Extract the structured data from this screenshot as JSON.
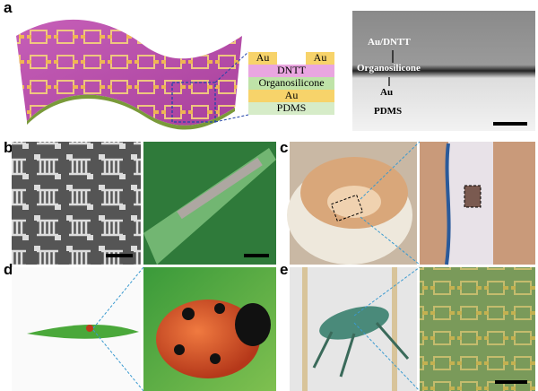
{
  "panels": {
    "a": "a",
    "b": "b",
    "c": "c",
    "d": "d",
    "e": "e"
  },
  "layer_stack": {
    "top_left": "Au",
    "top_right": "Au",
    "layers": [
      "DNTT",
      "Organosilicone",
      "Au",
      "PDMS"
    ]
  },
  "sem_labels": {
    "top": "Au/DNTT",
    "middle": "Organosilicone",
    "lower": "Au",
    "bottom": "PDMS"
  }
}
